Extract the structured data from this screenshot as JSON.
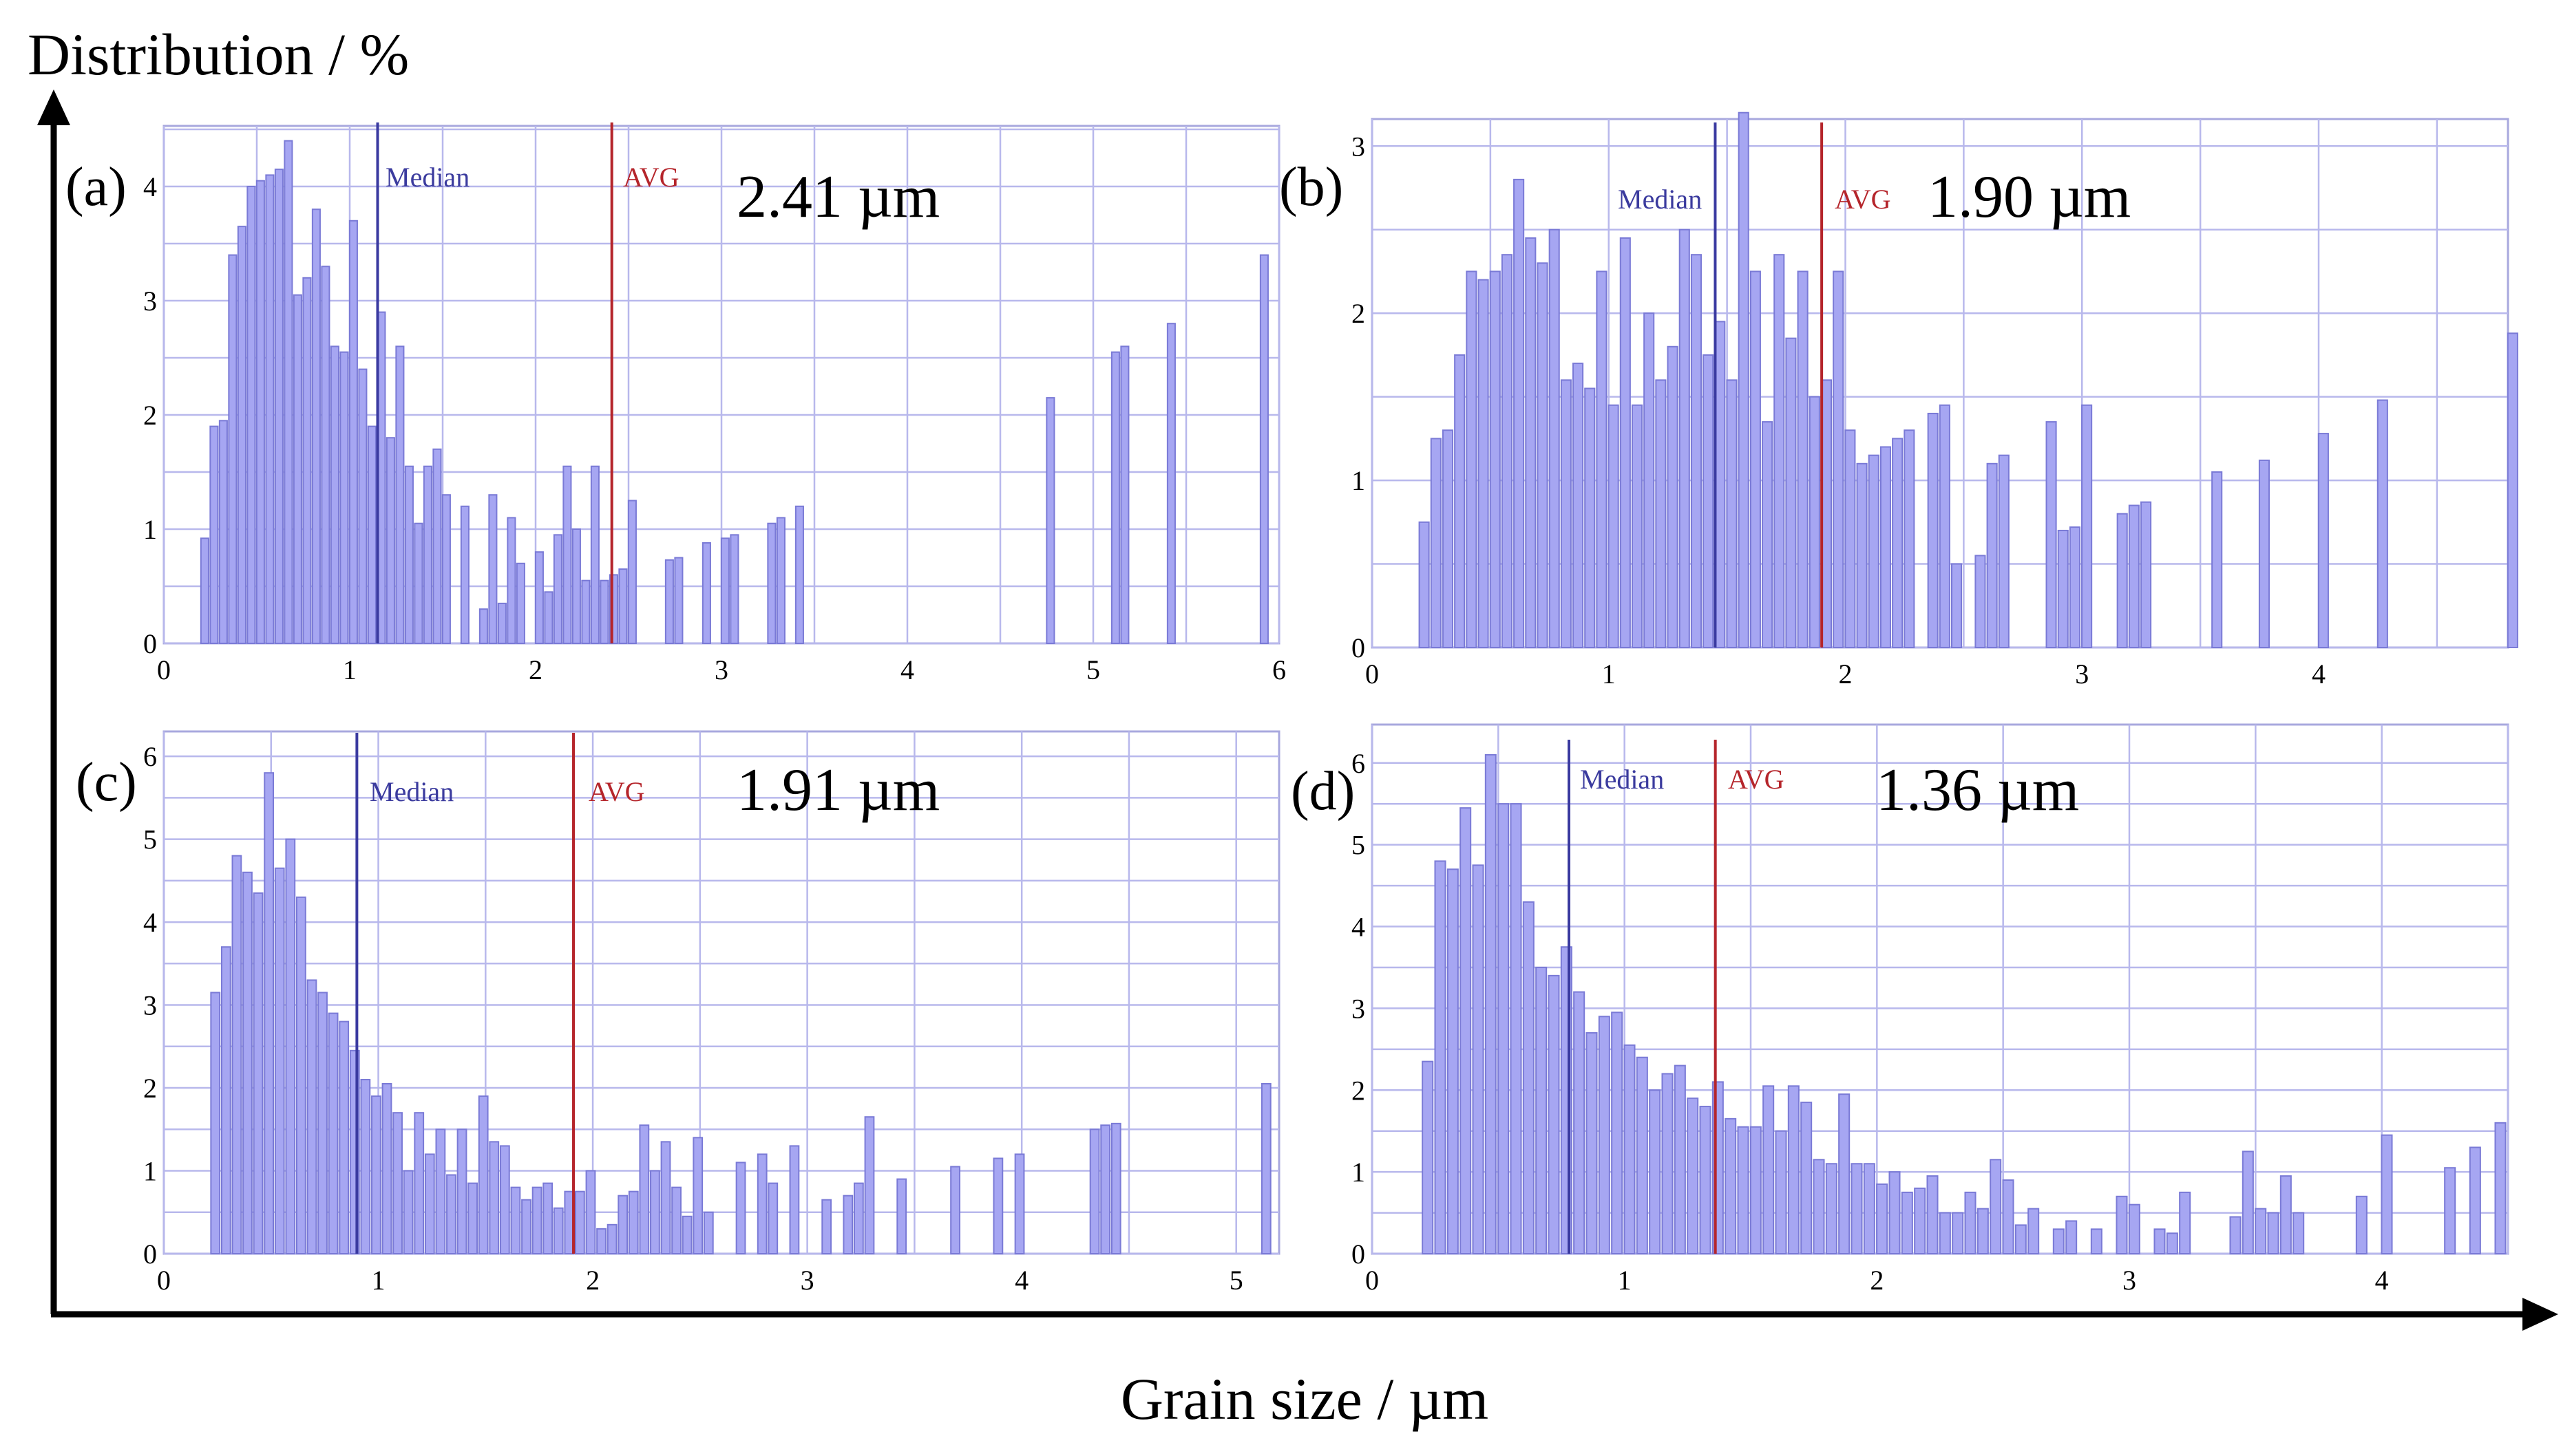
{
  "figure": {
    "y_axis_label": "Distribution / %",
    "x_axis_label": "Grain size / µm"
  },
  "chart_data": [
    {
      "type": "bar",
      "panel": "(a)",
      "avg_label": "2.41 µm",
      "median_label": "Median",
      "avg_line_label": "AVG",
      "median": 1.15,
      "avg": 2.41,
      "xlim": [
        0,
        6
      ],
      "ylim": [
        0,
        4.5
      ],
      "xticks": [
        0,
        1,
        2,
        3,
        4,
        5,
        6
      ],
      "yticks": [
        0,
        1,
        2,
        3,
        4
      ],
      "bin_width": 0.05,
      "bars": [
        [
          0.22,
          0.92
        ],
        [
          0.27,
          1.9
        ],
        [
          0.32,
          1.95
        ],
        [
          0.37,
          3.4
        ],
        [
          0.42,
          3.65
        ],
        [
          0.47,
          4.0
        ],
        [
          0.52,
          4.05
        ],
        [
          0.57,
          4.1
        ],
        [
          0.62,
          4.15
        ],
        [
          0.67,
          4.4
        ],
        [
          0.72,
          3.05
        ],
        [
          0.77,
          3.2
        ],
        [
          0.82,
          3.8
        ],
        [
          0.87,
          3.3
        ],
        [
          0.92,
          2.6
        ],
        [
          0.97,
          2.55
        ],
        [
          1.02,
          3.7
        ],
        [
          1.07,
          2.4
        ],
        [
          1.12,
          1.9
        ],
        [
          1.17,
          2.9
        ],
        [
          1.22,
          1.8
        ],
        [
          1.27,
          2.6
        ],
        [
          1.32,
          1.55
        ],
        [
          1.37,
          1.05
        ],
        [
          1.42,
          1.55
        ],
        [
          1.47,
          1.7
        ],
        [
          1.52,
          1.3
        ],
        [
          1.62,
          1.2
        ],
        [
          1.72,
          0.3
        ],
        [
          1.77,
          1.3
        ],
        [
          1.82,
          0.35
        ],
        [
          1.87,
          1.1
        ],
        [
          1.92,
          0.7
        ],
        [
          2.02,
          0.8
        ],
        [
          2.07,
          0.45
        ],
        [
          2.12,
          0.95
        ],
        [
          2.17,
          1.55
        ],
        [
          2.22,
          1.0
        ],
        [
          2.27,
          0.55
        ],
        [
          2.32,
          1.55
        ],
        [
          2.37,
          0.55
        ],
        [
          2.42,
          0.6
        ],
        [
          2.47,
          0.65
        ],
        [
          2.52,
          1.25
        ],
        [
          2.72,
          0.73
        ],
        [
          2.77,
          0.75
        ],
        [
          2.92,
          0.88
        ],
        [
          3.02,
          0.92
        ],
        [
          3.07,
          0.95
        ],
        [
          3.27,
          1.05
        ],
        [
          3.32,
          1.1
        ],
        [
          3.42,
          1.2
        ],
        [
          4.77,
          2.15
        ],
        [
          5.12,
          2.55
        ],
        [
          5.17,
          2.6
        ],
        [
          5.42,
          2.8
        ],
        [
          5.92,
          3.4
        ]
      ]
    },
    {
      "type": "bar",
      "panel": "(b)",
      "avg_label": "1.90 µm",
      "median_label": "Median",
      "avg_line_label": "AVG",
      "median": 1.45,
      "avg": 1.9,
      "xlim": [
        0,
        4.8
      ],
      "ylim": [
        0,
        3.1
      ],
      "xticks": [
        0,
        1,
        2,
        3,
        4
      ],
      "yticks": [
        0,
        1,
        2,
        3
      ],
      "bin_width": 0.05,
      "bars": [
        [
          0.22,
          0.75
        ],
        [
          0.27,
          1.25
        ],
        [
          0.32,
          1.3
        ],
        [
          0.37,
          1.75
        ],
        [
          0.42,
          2.25
        ],
        [
          0.47,
          2.2
        ],
        [
          0.52,
          2.25
        ],
        [
          0.57,
          2.35
        ],
        [
          0.62,
          2.8
        ],
        [
          0.67,
          2.45
        ],
        [
          0.72,
          2.3
        ],
        [
          0.77,
          2.5
        ],
        [
          0.82,
          1.6
        ],
        [
          0.87,
          1.7
        ],
        [
          0.92,
          1.55
        ],
        [
          0.97,
          2.25
        ],
        [
          1.02,
          1.45
        ],
        [
          1.07,
          2.45
        ],
        [
          1.12,
          1.45
        ],
        [
          1.17,
          2.0
        ],
        [
          1.22,
          1.6
        ],
        [
          1.27,
          1.8
        ],
        [
          1.32,
          2.5
        ],
        [
          1.37,
          2.35
        ],
        [
          1.42,
          1.75
        ],
        [
          1.47,
          1.95
        ],
        [
          1.52,
          1.6
        ],
        [
          1.57,
          3.2
        ],
        [
          1.62,
          2.25
        ],
        [
          1.67,
          1.35
        ],
        [
          1.72,
          2.35
        ],
        [
          1.77,
          1.85
        ],
        [
          1.82,
          2.25
        ],
        [
          1.87,
          1.5
        ],
        [
          1.92,
          1.6
        ],
        [
          1.97,
          2.25
        ],
        [
          2.02,
          1.3
        ],
        [
          2.07,
          1.1
        ],
        [
          2.12,
          1.15
        ],
        [
          2.17,
          1.2
        ],
        [
          2.22,
          1.25
        ],
        [
          2.27,
          1.3
        ],
        [
          2.37,
          1.4
        ],
        [
          2.42,
          1.45
        ],
        [
          2.47,
          0.5
        ],
        [
          2.57,
          0.55
        ],
        [
          2.62,
          1.1
        ],
        [
          2.67,
          1.15
        ],
        [
          2.87,
          1.35
        ],
        [
          2.92,
          0.7
        ],
        [
          2.97,
          0.72
        ],
        [
          3.02,
          1.45
        ],
        [
          3.17,
          0.8
        ],
        [
          3.22,
          0.85
        ],
        [
          3.27,
          0.87
        ],
        [
          3.57,
          1.05
        ],
        [
          3.77,
          1.12
        ],
        [
          4.02,
          1.28
        ],
        [
          4.27,
          1.48
        ],
        [
          4.82,
          1.88
        ]
      ]
    },
    {
      "type": "bar",
      "panel": "(c)",
      "avg_label": "1.91 µm",
      "median_label": "Median",
      "avg_line_label": "AVG",
      "median": 0.9,
      "avg": 1.91,
      "xlim": [
        0,
        5.2
      ],
      "ylim": [
        0,
        6.2
      ],
      "xticks": [
        0,
        1,
        2,
        3,
        4,
        5
      ],
      "yticks": [
        0,
        1,
        2,
        3,
        4,
        5,
        6
      ],
      "bin_width": 0.05,
      "bars": [
        [
          0.24,
          3.15
        ],
        [
          0.29,
          3.7
        ],
        [
          0.34,
          4.8
        ],
        [
          0.39,
          4.6
        ],
        [
          0.44,
          4.35
        ],
        [
          0.49,
          5.8
        ],
        [
          0.54,
          4.65
        ],
        [
          0.59,
          5.0
        ],
        [
          0.64,
          4.3
        ],
        [
          0.69,
          3.3
        ],
        [
          0.74,
          3.15
        ],
        [
          0.79,
          2.9
        ],
        [
          0.84,
          2.8
        ],
        [
          0.89,
          2.45
        ],
        [
          0.94,
          2.1
        ],
        [
          0.99,
          1.9
        ],
        [
          1.04,
          2.05
        ],
        [
          1.09,
          1.7
        ],
        [
          1.14,
          1.0
        ],
        [
          1.19,
          1.7
        ],
        [
          1.24,
          1.2
        ],
        [
          1.29,
          1.5
        ],
        [
          1.34,
          0.95
        ],
        [
          1.39,
          1.5
        ],
        [
          1.44,
          0.85
        ],
        [
          1.49,
          1.9
        ],
        [
          1.54,
          1.35
        ],
        [
          1.59,
          1.3
        ],
        [
          1.64,
          0.8
        ],
        [
          1.69,
          0.65
        ],
        [
          1.74,
          0.8
        ],
        [
          1.79,
          0.85
        ],
        [
          1.84,
          0.55
        ],
        [
          1.89,
          0.75
        ],
        [
          1.94,
          0.75
        ],
        [
          1.99,
          1.0
        ],
        [
          2.04,
          0.3
        ],
        [
          2.09,
          0.35
        ],
        [
          2.14,
          0.7
        ],
        [
          2.19,
          0.75
        ],
        [
          2.24,
          1.55
        ],
        [
          2.29,
          1.0
        ],
        [
          2.34,
          1.35
        ],
        [
          2.39,
          0.8
        ],
        [
          2.44,
          0.45
        ],
        [
          2.49,
          1.4
        ],
        [
          2.54,
          0.5
        ],
        [
          2.69,
          1.1
        ],
        [
          2.79,
          1.2
        ],
        [
          2.84,
          0.85
        ],
        [
          2.94,
          1.3
        ],
        [
          3.09,
          0.65
        ],
        [
          3.19,
          0.7
        ],
        [
          3.24,
          0.85
        ],
        [
          3.29,
          1.65
        ],
        [
          3.44,
          0.9
        ],
        [
          3.69,
          1.05
        ],
        [
          3.89,
          1.15
        ],
        [
          3.99,
          1.2
        ],
        [
          4.34,
          1.5
        ],
        [
          4.39,
          1.55
        ],
        [
          4.44,
          1.57
        ],
        [
          5.14,
          2.05
        ]
      ]
    },
    {
      "type": "bar",
      "panel": "(d)",
      "avg_label": "1.36 µm",
      "median_label": "Median",
      "avg_line_label": "AVG",
      "median": 0.78,
      "avg": 1.36,
      "xlim": [
        0,
        4.5
      ],
      "ylim": [
        0,
        6.2
      ],
      "xticks": [
        0,
        1,
        2,
        3,
        4
      ],
      "yticks": [
        0,
        1,
        2,
        3,
        4,
        5,
        6
      ],
      "bin_width": 0.05,
      "bars": [
        [
          0.22,
          2.35
        ],
        [
          0.27,
          4.8
        ],
        [
          0.32,
          4.7
        ],
        [
          0.37,
          5.45
        ],
        [
          0.42,
          4.75
        ],
        [
          0.47,
          6.1
        ],
        [
          0.52,
          5.5
        ],
        [
          0.57,
          5.5
        ],
        [
          0.62,
          4.3
        ],
        [
          0.67,
          3.5
        ],
        [
          0.72,
          3.4
        ],
        [
          0.77,
          3.75
        ],
        [
          0.82,
          3.2
        ],
        [
          0.87,
          2.7
        ],
        [
          0.92,
          2.9
        ],
        [
          0.97,
          2.95
        ],
        [
          1.02,
          2.55
        ],
        [
          1.07,
          2.4
        ],
        [
          1.12,
          2.0
        ],
        [
          1.17,
          2.2
        ],
        [
          1.22,
          2.3
        ],
        [
          1.27,
          1.9
        ],
        [
          1.32,
          1.8
        ],
        [
          1.37,
          2.1
        ],
        [
          1.42,
          1.65
        ],
        [
          1.47,
          1.55
        ],
        [
          1.52,
          1.55
        ],
        [
          1.57,
          2.05
        ],
        [
          1.62,
          1.5
        ],
        [
          1.67,
          2.05
        ],
        [
          1.72,
          1.85
        ],
        [
          1.77,
          1.15
        ],
        [
          1.82,
          1.1
        ],
        [
          1.87,
          1.95
        ],
        [
          1.92,
          1.1
        ],
        [
          1.97,
          1.1
        ],
        [
          2.02,
          0.85
        ],
        [
          2.07,
          1.0
        ],
        [
          2.12,
          0.75
        ],
        [
          2.17,
          0.8
        ],
        [
          2.22,
          0.95
        ],
        [
          2.27,
          0.5
        ],
        [
          2.32,
          0.5
        ],
        [
          2.37,
          0.75
        ],
        [
          2.42,
          0.55
        ],
        [
          2.47,
          1.15
        ],
        [
          2.52,
          0.9
        ],
        [
          2.57,
          0.35
        ],
        [
          2.62,
          0.55
        ],
        [
          2.72,
          0.3
        ],
        [
          2.77,
          0.4
        ],
        [
          2.87,
          0.3
        ],
        [
          2.97,
          0.7
        ],
        [
          3.02,
          0.6
        ],
        [
          3.12,
          0.3
        ],
        [
          3.17,
          0.25
        ],
        [
          3.22,
          0.75
        ],
        [
          3.42,
          0.45
        ],
        [
          3.47,
          1.25
        ],
        [
          3.52,
          0.55
        ],
        [
          3.57,
          0.5
        ],
        [
          3.62,
          0.95
        ],
        [
          3.67,
          0.5
        ],
        [
          3.92,
          0.7
        ],
        [
          4.02,
          1.45
        ],
        [
          4.27,
          1.05
        ],
        [
          4.37,
          1.3
        ],
        [
          4.47,
          1.6
        ]
      ]
    }
  ]
}
